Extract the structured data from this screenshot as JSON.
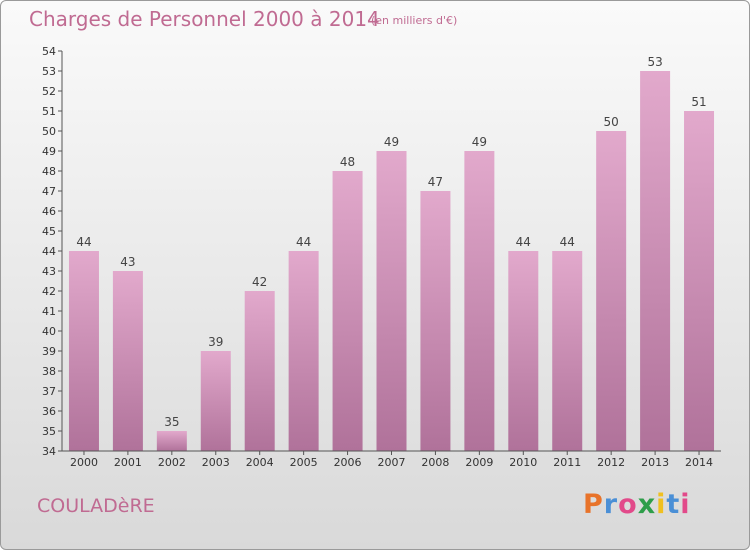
{
  "header": {
    "title": "Charges de Personnel 2000 à 2014",
    "subtitle": "(en milliers d'€)"
  },
  "footer": {
    "commune": "COULADèRE",
    "logo_text": "Proxiti",
    "logo_colors": [
      "#e8732a",
      "#4a8fd6",
      "#e24a8a",
      "#2e9e4a",
      "#f0c020",
      "#4a8fd6",
      "#e24a8a"
    ]
  },
  "colors": {
    "bar_top": "#e2a9cc",
    "bar_bottom": "#b0729a",
    "text_accent": "#c06b92",
    "axis": "#555555"
  },
  "chart_data": {
    "type": "bar",
    "categories": [
      "2000",
      "2001",
      "2002",
      "2003",
      "2004",
      "2005",
      "2006",
      "2007",
      "2008",
      "2009",
      "2010",
      "2011",
      "2012",
      "2013",
      "2014"
    ],
    "values": [
      44,
      43,
      35,
      39,
      42,
      44,
      48,
      49,
      47,
      49,
      44,
      44,
      50,
      53,
      51
    ],
    "ylim": [
      34,
      54
    ],
    "yticks": [
      34,
      35,
      36,
      37,
      38,
      39,
      40,
      41,
      42,
      43,
      44,
      45,
      46,
      47,
      48,
      49,
      50,
      51,
      52,
      53,
      54
    ],
    "grid": false,
    "data_labels": true
  }
}
